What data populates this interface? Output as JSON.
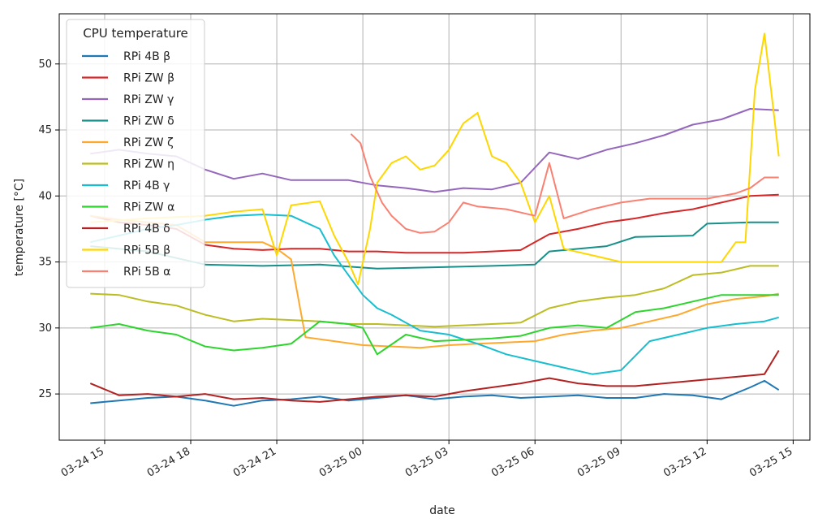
{
  "chart_data": {
    "type": "line",
    "title": "",
    "xlabel": "date",
    "ylabel": "temperature [°C]",
    "x_ticks": [
      "03-24 15",
      "03-24 18",
      "03-24 21",
      "03-25 00",
      "03-25 03",
      "03-25 06",
      "03-25 09",
      "03-25 12",
      "03-25 15"
    ],
    "y_ticks": [
      "25",
      "30",
      "35",
      "40",
      "45",
      "50"
    ],
    "xlim": [
      "2024-03-24 13:25",
      "2024-03-25 15:35"
    ],
    "ylim": [
      21.5,
      53.8
    ],
    "grid": true,
    "legend": {
      "title": "CPU temperature",
      "position": "top-left"
    },
    "series": [
      {
        "name": "RPi 4B β",
        "color": "#1f77b4",
        "x": [
          "2024-03-24 14:30",
          "2024-03-24 15:30",
          "2024-03-24 16:30",
          "2024-03-24 17:30",
          "2024-03-24 18:30",
          "2024-03-24 19:30",
          "2024-03-24 20:30",
          "2024-03-24 21:30",
          "2024-03-24 22:30",
          "2024-03-24 23:30",
          "2024-03-25 00:30",
          "2024-03-25 01:30",
          "2024-03-25 02:30",
          "2024-03-25 03:30",
          "2024-03-25 04:30",
          "2024-03-25 05:30",
          "2024-03-25 06:30",
          "2024-03-25 07:30",
          "2024-03-25 08:30",
          "2024-03-25 09:30",
          "2024-03-25 10:30",
          "2024-03-25 11:30",
          "2024-03-25 12:30",
          "2024-03-25 13:30",
          "2024-03-25 14:00",
          "2024-03-25 14:30"
        ],
        "y": [
          24.3,
          24.5,
          24.7,
          24.8,
          24.5,
          24.1,
          24.5,
          24.6,
          24.8,
          24.5,
          24.7,
          24.9,
          24.6,
          24.8,
          24.9,
          24.7,
          24.8,
          24.9,
          24.7,
          24.7,
          25.0,
          24.9,
          24.6,
          25.5,
          26.0,
          25.3
        ]
      },
      {
        "name": "RPi ZW β",
        "color": "#d62728",
        "x": [
          "2024-03-24 14:30",
          "2024-03-24 15:30",
          "2024-03-24 16:30",
          "2024-03-24 17:30",
          "2024-03-24 18:30",
          "2024-03-24 19:30",
          "2024-03-24 20:30",
          "2024-03-24 21:30",
          "2024-03-24 22:30",
          "2024-03-24 23:30",
          "2024-03-25 00:30",
          "2024-03-25 01:30",
          "2024-03-25 02:30",
          "2024-03-25 03:30",
          "2024-03-25 04:30",
          "2024-03-25 05:30",
          "2024-03-25 06:30",
          "2024-03-25 07:30",
          "2024-03-25 08:30",
          "2024-03-25 09:30",
          "2024-03-25 10:30",
          "2024-03-25 11:30",
          "2024-03-25 12:30",
          "2024-03-25 13:30",
          "2024-03-25 14:30"
        ],
        "y": [
          38.5,
          38.0,
          37.8,
          37.5,
          36.3,
          36.0,
          35.9,
          36.0,
          36.0,
          35.8,
          35.8,
          35.7,
          35.7,
          35.7,
          35.8,
          35.9,
          37.1,
          37.5,
          38.0,
          38.3,
          38.7,
          39.0,
          39.5,
          40.0,
          40.1
        ]
      },
      {
        "name": "RPi ZW γ",
        "color": "#9467bd",
        "x": [
          "2024-03-24 14:30",
          "2024-03-24 15:30",
          "2024-03-24 16:30",
          "2024-03-24 17:30",
          "2024-03-24 18:30",
          "2024-03-24 19:30",
          "2024-03-24 20:30",
          "2024-03-24 21:30",
          "2024-03-24 22:30",
          "2024-03-24 23:30",
          "2024-03-25 00:30",
          "2024-03-25 01:30",
          "2024-03-25 02:30",
          "2024-03-25 03:30",
          "2024-03-25 04:30",
          "2024-03-25 05:30",
          "2024-03-25 06:30",
          "2024-03-25 07:30",
          "2024-03-25 08:30",
          "2024-03-25 09:30",
          "2024-03-25 10:30",
          "2024-03-25 11:30",
          "2024-03-25 12:30",
          "2024-03-25 13:30",
          "2024-03-25 14:30"
        ],
        "y": [
          43.2,
          43.5,
          43.2,
          43.0,
          42.0,
          41.3,
          41.7,
          41.2,
          41.2,
          41.2,
          40.8,
          40.6,
          40.3,
          40.6,
          40.5,
          41.0,
          43.3,
          42.8,
          43.5,
          44.0,
          44.6,
          45.4,
          45.8,
          46.6,
          46.5
        ]
      },
      {
        "name": "RPi ZW δ",
        "color": "#17908a",
        "x": [
          "2024-03-24 14:30",
          "2024-03-24 16:30",
          "2024-03-24 18:30",
          "2024-03-24 20:30",
          "2024-03-24 22:30",
          "2024-03-25 00:30",
          "2024-03-25 02:30",
          "2024-03-25 04:30",
          "2024-03-25 06:00",
          "2024-03-25 06:30",
          "2024-03-25 08:30",
          "2024-03-25 09:30",
          "2024-03-25 11:30",
          "2024-03-25 12:00",
          "2024-03-25 13:30",
          "2024-03-25 14:30"
        ],
        "y": [
          36.2,
          35.8,
          34.8,
          34.7,
          34.8,
          34.5,
          34.6,
          34.7,
          34.8,
          35.8,
          36.2,
          36.9,
          37.0,
          37.9,
          38.0,
          38.0
        ]
      },
      {
        "name": "RPi ZW ζ",
        "color": "#ffa82e",
        "x": [
          "2024-03-24 14:30",
          "2024-03-24 15:30",
          "2024-03-24 16:30",
          "2024-03-24 17:30",
          "2024-03-24 18:30",
          "2024-03-24 19:30",
          "2024-03-24 20:30",
          "2024-03-24 21:00",
          "2024-03-24 21:30",
          "2024-03-24 22:00",
          "2024-03-24 23:00",
          "2024-03-25 00:00",
          "2024-03-25 01:00",
          "2024-03-25 02:00",
          "2024-03-25 03:00",
          "2024-03-25 04:00",
          "2024-03-25 05:00",
          "2024-03-25 06:00",
          "2024-03-25 07:00",
          "2024-03-25 08:00",
          "2024-03-25 09:00",
          "2024-03-25 10:00",
          "2024-03-25 11:00",
          "2024-03-25 12:00",
          "2024-03-25 13:00",
          "2024-03-25 14:00",
          "2024-03-25 14:30"
        ],
        "y": [
          38.5,
          38.2,
          38.0,
          37.8,
          36.5,
          36.5,
          36.5,
          36.0,
          35.2,
          29.3,
          29.0,
          28.7,
          28.6,
          28.5,
          28.7,
          28.8,
          28.9,
          29.0,
          29.5,
          29.8,
          30.0,
          30.5,
          31.0,
          31.8,
          32.2,
          32.4,
          32.6
        ]
      },
      {
        "name": "RPi ZW η",
        "color": "#bcbd22",
        "x": [
          "2024-03-24 14:30",
          "2024-03-24 15:30",
          "2024-03-24 16:30",
          "2024-03-24 17:30",
          "2024-03-24 18:30",
          "2024-03-24 19:30",
          "2024-03-24 20:30",
          "2024-03-24 21:30",
          "2024-03-24 22:30",
          "2024-03-24 23:30",
          "2024-03-25 00:30",
          "2024-03-25 01:30",
          "2024-03-25 02:30",
          "2024-03-25 03:30",
          "2024-03-25 04:30",
          "2024-03-25 05:30",
          "2024-03-25 06:30",
          "2024-03-25 07:30",
          "2024-03-25 08:30",
          "2024-03-25 09:30",
          "2024-03-25 10:30",
          "2024-03-25 11:30",
          "2024-03-25 12:30",
          "2024-03-25 13:30",
          "2024-03-25 14:30"
        ],
        "y": [
          32.6,
          32.5,
          32.0,
          31.7,
          31.0,
          30.5,
          30.7,
          30.6,
          30.5,
          30.3,
          30.3,
          30.2,
          30.1,
          30.2,
          30.3,
          30.4,
          31.5,
          32.0,
          32.3,
          32.5,
          33.0,
          34.0,
          34.2,
          34.7,
          34.7
        ]
      },
      {
        "name": "RPi 4B γ",
        "color": "#17becf",
        "x": [
          "2024-03-24 14:30",
          "2024-03-24 15:30",
          "2024-03-24 16:30",
          "2024-03-24 17:30",
          "2024-03-24 18:30",
          "2024-03-24 19:30",
          "2024-03-24 20:30",
          "2024-03-24 21:30",
          "2024-03-24 22:30",
          "2024-03-24 23:00",
          "2024-03-24 23:30",
          "2024-03-25 00:00",
          "2024-03-25 00:30",
          "2024-03-25 01:00",
          "2024-03-25 02:00",
          "2024-03-25 03:00",
          "2024-03-25 04:00",
          "2024-03-25 05:00",
          "2024-03-25 06:00",
          "2024-03-25 07:00",
          "2024-03-25 08:00",
          "2024-03-25 09:00",
          "2024-03-25 10:00",
          "2024-03-25 11:00",
          "2024-03-25 12:00",
          "2024-03-25 13:00",
          "2024-03-25 14:00",
          "2024-03-25 14:30"
        ],
        "y": [
          36.5,
          37.0,
          37.5,
          37.8,
          38.2,
          38.5,
          38.6,
          38.5,
          37.5,
          35.5,
          34.0,
          32.5,
          31.5,
          31.0,
          29.8,
          29.5,
          28.8,
          28.0,
          27.5,
          27.0,
          26.5,
          26.8,
          29.0,
          29.5,
          30.0,
          30.3,
          30.5,
          30.8
        ]
      },
      {
        "name": "RPi ZW α",
        "color": "#2ed42e",
        "x": [
          "2024-03-24 14:30",
          "2024-03-24 15:30",
          "2024-03-24 16:30",
          "2024-03-24 17:30",
          "2024-03-24 18:30",
          "2024-03-24 19:30",
          "2024-03-24 20:30",
          "2024-03-24 21:30",
          "2024-03-24 22:30",
          "2024-03-24 23:30",
          "2024-03-25 00:00",
          "2024-03-25 00:30",
          "2024-03-25 01:30",
          "2024-03-25 02:30",
          "2024-03-25 03:30",
          "2024-03-25 04:30",
          "2024-03-25 05:30",
          "2024-03-25 06:30",
          "2024-03-25 07:30",
          "2024-03-25 08:30",
          "2024-03-25 09:30",
          "2024-03-25 10:30",
          "2024-03-25 11:30",
          "2024-03-25 12:30",
          "2024-03-25 13:30",
          "2024-03-25 14:30"
        ],
        "y": [
          30.0,
          30.3,
          29.8,
          29.5,
          28.6,
          28.3,
          28.5,
          28.8,
          30.5,
          30.3,
          30.0,
          28.0,
          29.5,
          29.0,
          29.1,
          29.2,
          29.4,
          30.0,
          30.2,
          30.0,
          31.2,
          31.5,
          32.0,
          32.5,
          32.5,
          32.5
        ]
      },
      {
        "name": "RPi 4B δ",
        "color": "#b22222",
        "x": [
          "2024-03-24 14:30",
          "2024-03-24 15:30",
          "2024-03-24 16:30",
          "2024-03-24 17:30",
          "2024-03-24 18:30",
          "2024-03-24 19:30",
          "2024-03-24 20:30",
          "2024-03-24 21:30",
          "2024-03-24 22:30",
          "2024-03-24 23:30",
          "2024-03-25 00:30",
          "2024-03-25 01:30",
          "2024-03-25 02:30",
          "2024-03-25 03:30",
          "2024-03-25 04:30",
          "2024-03-25 05:30",
          "2024-03-25 06:30",
          "2024-03-25 07:30",
          "2024-03-25 08:30",
          "2024-03-25 09:30",
          "2024-03-25 10:30",
          "2024-03-25 11:30",
          "2024-03-25 12:30",
          "2024-03-25 13:30",
          "2024-03-25 14:00",
          "2024-03-25 14:30"
        ],
        "y": [
          25.8,
          24.9,
          25.0,
          24.8,
          25.0,
          24.6,
          24.7,
          24.5,
          24.4,
          24.6,
          24.8,
          24.9,
          24.8,
          25.2,
          25.5,
          25.8,
          26.2,
          25.8,
          25.6,
          25.6,
          25.8,
          26.0,
          26.2,
          26.4,
          26.5,
          28.3
        ]
      },
      {
        "name": "RPi 5B β",
        "color": "#ffd700",
        "x": [
          "2024-03-24 14:30",
          "2024-03-24 16:30",
          "2024-03-24 18:30",
          "2024-03-24 19:30",
          "2024-03-24 20:30",
          "2024-03-24 21:00",
          "2024-03-24 21:30",
          "2024-03-24 22:30",
          "2024-03-24 23:00",
          "2024-03-24 23:30",
          "2024-03-24 23:50",
          "2024-03-25 00:15",
          "2024-03-25 00:30",
          "2024-03-25 01:00",
          "2024-03-25 01:30",
          "2024-03-25 02:00",
          "2024-03-25 02:30",
          "2024-03-25 03:00",
          "2024-03-25 03:30",
          "2024-03-25 04:00",
          "2024-03-25 04:30",
          "2024-03-25 05:00",
          "2024-03-25 05:30",
          "2024-03-25 06:00",
          "2024-03-25 06:30",
          "2024-03-25 07:00",
          "2024-03-25 08:00",
          "2024-03-25 09:00",
          "2024-03-25 10:00",
          "2024-03-25 11:00",
          "2024-03-25 12:00",
          "2024-03-25 12:30",
          "2024-03-25 13:00",
          "2024-03-25 13:20",
          "2024-03-25 13:40",
          "2024-03-25 14:00",
          "2024-03-25 14:30"
        ],
        "y": [
          38.0,
          38.3,
          38.5,
          38.8,
          39.0,
          35.5,
          39.3,
          39.6,
          37.0,
          35.0,
          33.3,
          37.5,
          41.0,
          42.5,
          43.0,
          42.0,
          42.3,
          43.5,
          45.5,
          46.3,
          43.0,
          42.5,
          41.0,
          38.0,
          40.0,
          36.0,
          35.5,
          35.0,
          35.0,
          35.0,
          35.0,
          35.0,
          36.5,
          36.5,
          48.0,
          52.3,
          43.0
        ]
      },
      {
        "name": "RPi 5B α",
        "color": "#fa8072",
        "x": [
          "2024-03-24 23:35",
          "2024-03-24 23:55",
          "2024-03-25 00:15",
          "2024-03-25 00:40",
          "2024-03-25 01:00",
          "2024-03-25 01:30",
          "2024-03-25 02:00",
          "2024-03-25 02:30",
          "2024-03-25 03:00",
          "2024-03-25 03:30",
          "2024-03-25 04:00",
          "2024-03-25 05:00",
          "2024-03-25 06:00",
          "2024-03-25 06:30",
          "2024-03-25 07:00",
          "2024-03-25 08:00",
          "2024-03-25 09:00",
          "2024-03-25 10:00",
          "2024-03-25 11:00",
          "2024-03-25 12:00",
          "2024-03-25 13:00",
          "2024-03-25 13:30",
          "2024-03-25 14:00",
          "2024-03-25 14:30"
        ],
        "y": [
          44.7,
          44.0,
          41.5,
          39.5,
          38.5,
          37.5,
          37.2,
          37.3,
          38.0,
          39.5,
          39.2,
          39.0,
          38.5,
          42.5,
          38.3,
          39.0,
          39.5,
          39.8,
          39.8,
          39.8,
          40.2,
          40.6,
          41.4,
          41.4
        ]
      }
    ]
  }
}
